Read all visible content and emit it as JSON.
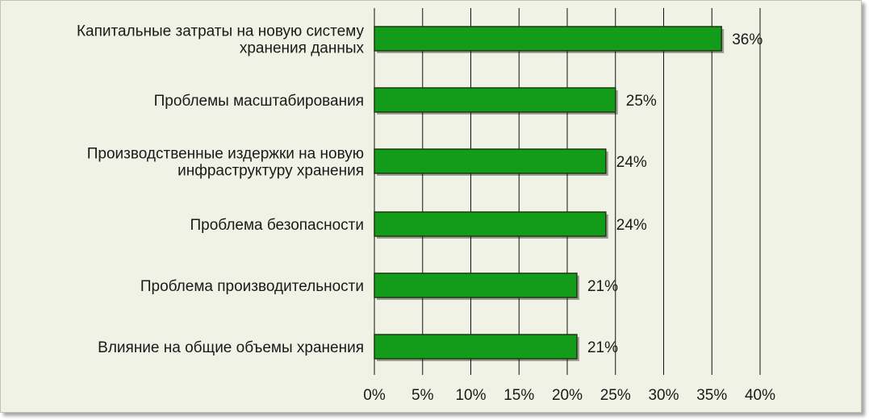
{
  "chart_data": {
    "type": "bar",
    "orientation": "horizontal",
    "categories": [
      [
        "Капитальные затраты на новую систему",
        "хранения данных"
      ],
      [
        "Проблемы масштабирования"
      ],
      [
        "Производственные издержки на новую",
        "инфраструктуру хранения"
      ],
      [
        "Проблема безопасности"
      ],
      [
        "Проблема производительности"
      ],
      [
        "Влияние на общие объемы хранения"
      ]
    ],
    "values": [
      36,
      25,
      24,
      24,
      21,
      21
    ],
    "value_labels": [
      "36%",
      "25%",
      "24%",
      "24%",
      "21%",
      "21%"
    ],
    "x_ticks": [
      "0%",
      "5%",
      "10%",
      "15%",
      "20%",
      "25%",
      "30%",
      "35%",
      "40%"
    ],
    "xlim": [
      0,
      40
    ],
    "grid": true,
    "bar_color": "#129c1a",
    "bar_border": "#1e3a10",
    "background": "#eff2e4"
  }
}
